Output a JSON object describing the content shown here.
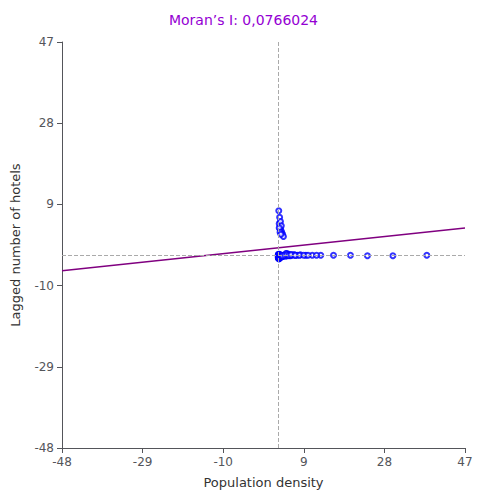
{
  "chart_data": {
    "type": "scatter",
    "title": "Moran’s I: 0,0766024",
    "title_color": "#9400D3",
    "xlabel": "Population density",
    "ylabel": "Lagged number of hotels",
    "xlim": [
      -48,
      47
    ],
    "ylim": [
      -48,
      47
    ],
    "xticks": [
      -48,
      -29,
      -10,
      9,
      28,
      47
    ],
    "yticks": [
      -48,
      -29,
      -10,
      9,
      28,
      47
    ],
    "grid": false,
    "reference_lines": [
      {
        "axis": "x",
        "value": 3.0,
        "color": "#aaaaaa",
        "line_style": "dashed"
      },
      {
        "axis": "y",
        "value": -3.0,
        "color": "#aaaaaa",
        "line_style": "dashed"
      }
    ],
    "series": [
      {
        "type": "line",
        "color": "#800080",
        "line_style": "solid",
        "x": [
          -48,
          47
        ],
        "values": [
          -6.5,
          3.5
        ]
      },
      {
        "type": "scatter",
        "color": "#0000FF",
        "marker": "open_circle",
        "x": [
          3.0,
          3.0,
          3.0,
          3.0,
          3.0,
          3.0,
          3.0,
          3.0,
          3.0,
          3.0,
          3.1,
          3.1,
          3.1,
          3.1,
          3.1,
          3.1,
          3.1,
          3.1,
          3.1,
          3.1,
          3.2,
          3.2,
          3.2,
          3.2,
          3.2,
          3.2,
          3.2,
          3.2,
          3.2,
          3.2,
          3.3,
          3.3,
          3.3,
          3.3,
          3.3,
          3.3,
          3.3,
          3.3,
          3.3,
          3.3,
          3.5,
          3.5,
          3.5,
          3.7,
          3.7,
          3.9,
          3.9,
          4.1,
          4.1,
          4.3,
          4.5,
          4.7,
          4.9,
          5.2,
          5.5,
          5.8,
          6.2,
          6.8,
          7.5,
          8.2,
          3.2,
          3.4,
          3.6,
          3.8,
          4.0,
          4.2,
          5.0,
          5.5,
          6.0,
          7.0,
          9.5,
          11.0,
          13.0,
          16.0,
          20.0,
          24.0,
          30.0,
          38.0,
          3.1,
          3.3,
          3.5,
          3.7,
          3.2,
          3.4,
          3.6,
          4.8,
          6.5,
          3.0,
          3.1,
          3.2,
          3.3,
          3.4,
          3.5,
          3.6,
          3.7,
          3.8,
          3.9,
          4.0,
          4.5,
          5.0,
          5.5,
          6.0,
          7.0,
          8.0,
          9.0,
          10.0,
          12.0
        ],
        "values": [
          -3.0,
          -3.2,
          -3.4,
          -2.8,
          -3.6,
          -3.1,
          -2.9,
          -3.3,
          -3.5,
          -2.7,
          -3.1,
          -3.3,
          -3.5,
          -2.9,
          -3.7,
          -3.2,
          -3.0,
          -3.4,
          -3.6,
          -2.8,
          -3.2,
          -3.4,
          -3.0,
          -3.6,
          -2.9,
          -3.1,
          -3.3,
          -3.5,
          -2.8,
          -3.7,
          -3.0,
          -3.2,
          -3.4,
          -2.8,
          -3.6,
          -3.1,
          -2.9,
          -3.3,
          -3.5,
          -2.7,
          -3.0,
          -3.2,
          -2.9,
          -3.1,
          -3.3,
          -3.0,
          -3.2,
          -3.1,
          -2.9,
          -3.0,
          -2.9,
          -3.1,
          -2.8,
          -3.0,
          -2.9,
          -3.0,
          -2.9,
          -2.8,
          -2.9,
          -2.8,
          4.5,
          3.5,
          3.0,
          2.5,
          2.0,
          1.5,
          -2.5,
          -2.7,
          -2.8,
          -2.9,
          -2.9,
          -2.9,
          -2.9,
          -2.9,
          -2.9,
          -3.0,
          -3.0,
          -2.9,
          7.5,
          6.0,
          5.0,
          4.0,
          3.5,
          2.5,
          2.0,
          -2.5,
          -2.8,
          -3.0,
          -3.1,
          -3.2,
          -3.3,
          -3.0,
          -2.9,
          -3.1,
          -3.2,
          -3.0,
          -3.1,
          -3.0,
          -2.9,
          -2.8,
          -2.9,
          -2.8,
          -2.9,
          -2.9,
          -2.9,
          -2.9,
          -2.9
        ]
      }
    ]
  }
}
